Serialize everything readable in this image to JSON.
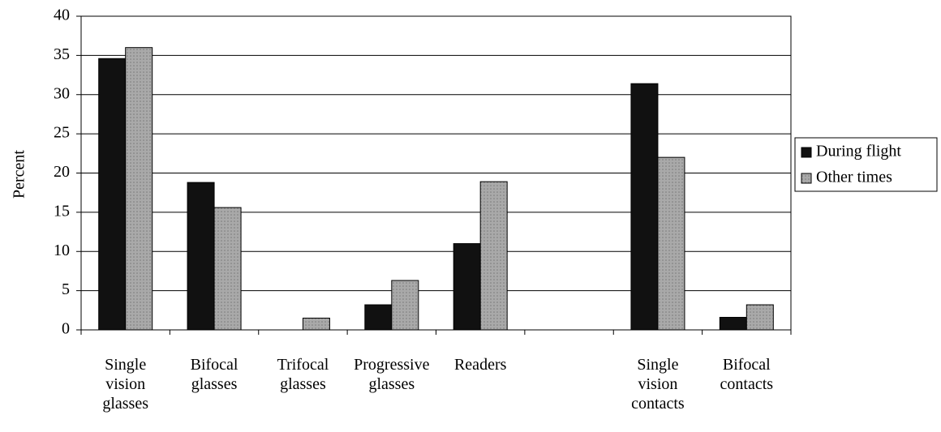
{
  "chart_data": {
    "type": "bar",
    "y_label": "Percent",
    "categories": [
      "Single vision glasses",
      "Bifocal glasses",
      "Trifocal glasses",
      "Progressive glasses",
      "Readers",
      null,
      "Single vision contacts",
      "Bifocal contacts"
    ],
    "series": [
      {
        "name": "During flight",
        "color": "#111111",
        "values": [
          34.6,
          18.8,
          null,
          3.2,
          11,
          null,
          31.4,
          1.6
        ]
      },
      {
        "name": "Other times",
        "color": "#a9a9a9",
        "values": [
          36,
          15.6,
          1.5,
          6.3,
          18.9,
          null,
          22,
          3.2
        ]
      }
    ],
    "ylim": [
      0,
      40
    ],
    "yticks": [
      0,
      5,
      10,
      15,
      20,
      25,
      30,
      35,
      40
    ],
    "grid": true,
    "legend": "right"
  }
}
